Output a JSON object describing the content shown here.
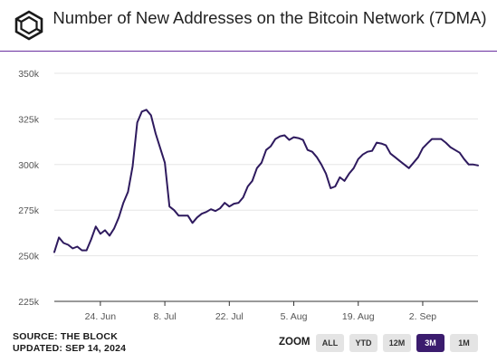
{
  "title": "Number of New Addresses on the Bitcoin Network (7DMA)",
  "footer": {
    "source": "SOURCE: THE BLOCK",
    "updated": "UPDATED: SEP 14, 2024"
  },
  "zoom": {
    "label": "ZOOM",
    "buttons": [
      {
        "label": "ALL",
        "active": false
      },
      {
        "label": "YTD",
        "active": false
      },
      {
        "label": "12M",
        "active": false
      },
      {
        "label": "3M",
        "active": true
      },
      {
        "label": "1M",
        "active": false
      }
    ]
  },
  "colors": {
    "line": "#2e1a5e",
    "accent": "#6b2fa0",
    "active_button": "#3b1c6e",
    "grid": "#e6e6e6"
  },
  "chart_data": {
    "type": "line",
    "title": "Number of New Addresses on the Bitcoin Network (7DMA)",
    "xlabel": "",
    "ylabel": "",
    "x_tick_labels": [
      "24. Jun",
      "8. Jul",
      "22. Jul",
      "5. Aug",
      "19. Aug",
      "2. Sep"
    ],
    "x_range": [
      "2024-06-14",
      "2024-09-14"
    ],
    "y_tick_labels": [
      "225k",
      "250k",
      "275k",
      "300k",
      "325k",
      "350k"
    ],
    "y_ticks": [
      225000,
      250000,
      275000,
      300000,
      325000,
      350000
    ],
    "ylim": [
      225000,
      350000
    ],
    "grid": "horizontal",
    "series": [
      {
        "values": [
          [
            "2024-06-14",
            252000
          ],
          [
            "2024-06-15",
            260000
          ],
          [
            "2024-06-16",
            257000
          ],
          [
            "2024-06-17",
            256000
          ],
          [
            "2024-06-18",
            254000
          ],
          [
            "2024-06-19",
            255000
          ],
          [
            "2024-06-20",
            253000
          ],
          [
            "2024-06-21",
            253000
          ],
          [
            "2024-06-22",
            259000
          ],
          [
            "2024-06-23",
            266000
          ],
          [
            "2024-06-24",
            262000
          ],
          [
            "2024-06-25",
            264000
          ],
          [
            "2024-06-26",
            261000
          ],
          [
            "2024-06-27",
            265000
          ],
          [
            "2024-06-28",
            271000
          ],
          [
            "2024-06-29",
            279000
          ],
          [
            "2024-06-30",
            285000
          ],
          [
            "2024-07-01",
            299000
          ],
          [
            "2024-07-02",
            323000
          ],
          [
            "2024-07-03",
            329000
          ],
          [
            "2024-07-04",
            330000
          ],
          [
            "2024-07-05",
            327000
          ],
          [
            "2024-07-06",
            317000
          ],
          [
            "2024-07-07",
            309000
          ],
          [
            "2024-07-08",
            301000
          ],
          [
            "2024-07-09",
            277000
          ],
          [
            "2024-07-10",
            275000
          ],
          [
            "2024-07-11",
            272000
          ],
          [
            "2024-07-12",
            272000
          ],
          [
            "2024-07-13",
            272000
          ],
          [
            "2024-07-14",
            268000
          ],
          [
            "2024-07-15",
            271000
          ],
          [
            "2024-07-16",
            273000
          ],
          [
            "2024-07-17",
            274000
          ],
          [
            "2024-07-18",
            275500
          ],
          [
            "2024-07-19",
            274500
          ],
          [
            "2024-07-20",
            276000
          ],
          [
            "2024-07-21",
            279000
          ],
          [
            "2024-07-22",
            277000
          ],
          [
            "2024-07-23",
            278500
          ],
          [
            "2024-07-24",
            279000
          ],
          [
            "2024-07-25",
            282000
          ],
          [
            "2024-07-26",
            288000
          ],
          [
            "2024-07-27",
            291000
          ],
          [
            "2024-07-28",
            298000
          ],
          [
            "2024-07-29",
            301000
          ],
          [
            "2024-07-30",
            308000
          ],
          [
            "2024-07-31",
            310000
          ],
          [
            "2024-08-01",
            314000
          ],
          [
            "2024-08-02",
            315500
          ],
          [
            "2024-08-03",
            316000
          ],
          [
            "2024-08-04",
            313500
          ],
          [
            "2024-08-05",
            315000
          ],
          [
            "2024-08-06",
            314500
          ],
          [
            "2024-08-07",
            313500
          ],
          [
            "2024-08-08",
            308000
          ],
          [
            "2024-08-09",
            307000
          ],
          [
            "2024-08-10",
            304000
          ],
          [
            "2024-08-11",
            300000
          ],
          [
            "2024-08-12",
            295000
          ],
          [
            "2024-08-13",
            287000
          ],
          [
            "2024-08-14",
            288000
          ],
          [
            "2024-08-15",
            293000
          ],
          [
            "2024-08-16",
            291000
          ],
          [
            "2024-08-17",
            295000
          ],
          [
            "2024-08-18",
            298000
          ],
          [
            "2024-08-19",
            303000
          ],
          [
            "2024-08-20",
            305500
          ],
          [
            "2024-08-21",
            307000
          ],
          [
            "2024-08-22",
            307500
          ],
          [
            "2024-08-23",
            312000
          ],
          [
            "2024-08-24",
            311500
          ],
          [
            "2024-08-25",
            310500
          ],
          [
            "2024-08-26",
            306000
          ],
          [
            "2024-08-27",
            304000
          ],
          [
            "2024-08-28",
            302000
          ],
          [
            "2024-08-29",
            300000
          ],
          [
            "2024-08-30",
            298000
          ],
          [
            "2024-08-31",
            301000
          ],
          [
            "2024-09-01",
            304000
          ],
          [
            "2024-09-02",
            309000
          ],
          [
            "2024-09-03",
            311500
          ],
          [
            "2024-09-04",
            314000
          ],
          [
            "2024-09-05",
            314000
          ],
          [
            "2024-09-06",
            314000
          ],
          [
            "2024-09-07",
            312000
          ],
          [
            "2024-09-08",
            309500
          ],
          [
            "2024-09-09",
            308000
          ],
          [
            "2024-09-10",
            306500
          ],
          [
            "2024-09-11",
            303000
          ],
          [
            "2024-09-12",
            300000
          ],
          [
            "2024-09-13",
            300000
          ],
          [
            "2024-09-14",
            299500
          ]
        ]
      }
    ]
  }
}
